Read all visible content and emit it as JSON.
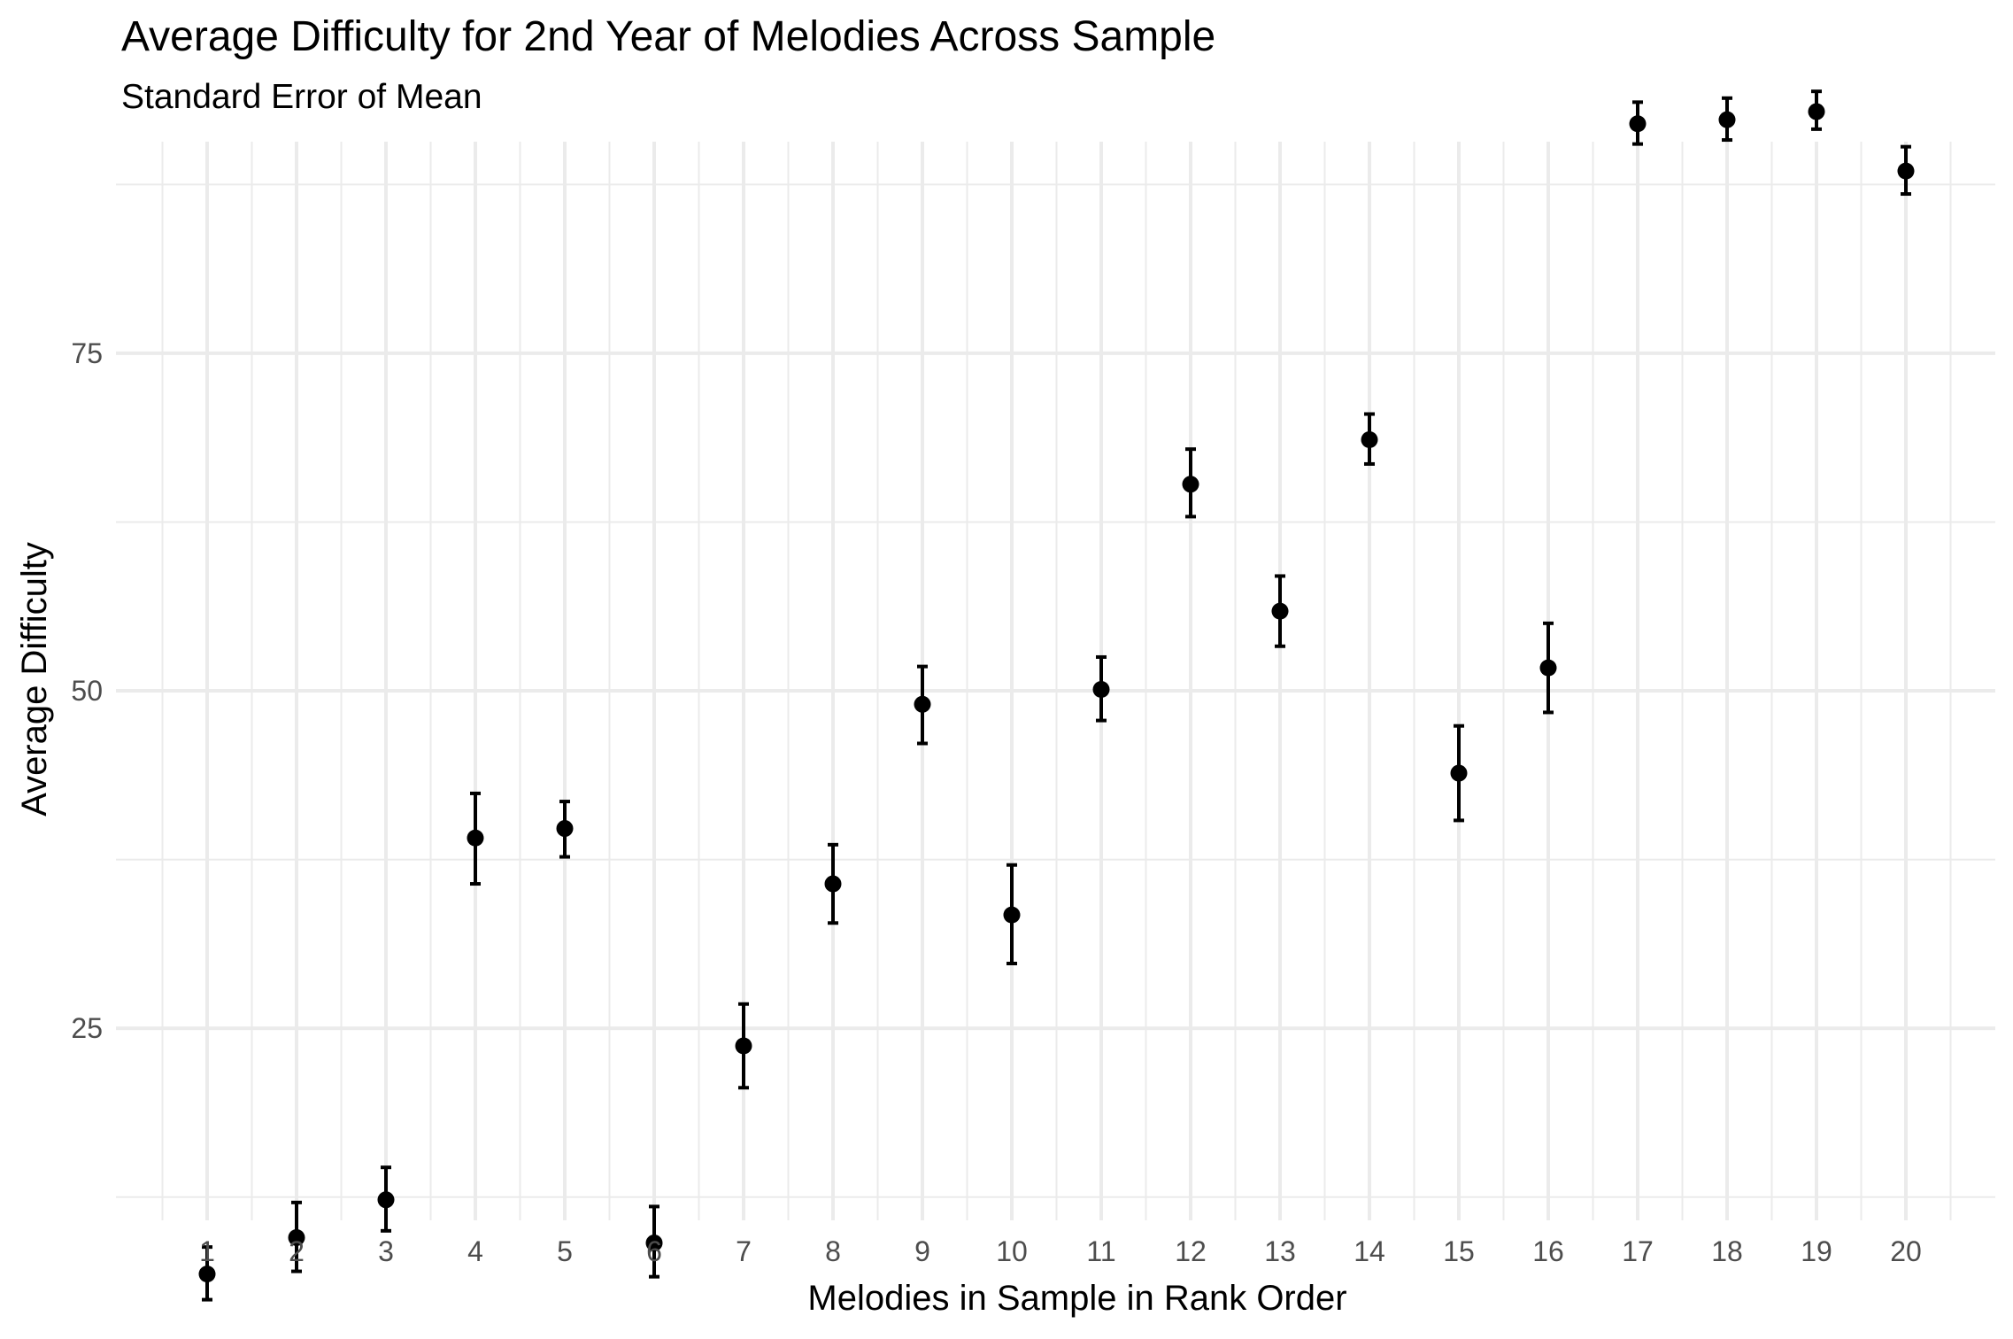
{
  "chart_data": {
    "type": "scatter",
    "title": "Average Difficulty for 2nd Year of Melodies Across Sample",
    "subtitle": "Standard Error of Mean",
    "xlabel": "Melodies in Sample in Rank Order",
    "ylabel": "Average Difficulty",
    "categories": [
      "1",
      "2",
      "3",
      "4",
      "5",
      "6",
      "7",
      "8",
      "9",
      "10",
      "11",
      "12",
      "13",
      "14",
      "15",
      "16",
      "17",
      "18",
      "19",
      "20"
    ],
    "y_ticks": [
      25,
      50,
      75
    ],
    "ylim": [
      3,
      98
    ],
    "grid": true,
    "error_bars": "standard error of mean",
    "series": [
      {
        "values": [
          6.8,
          9.5,
          12.3,
          39.1,
          39.8,
          9.1,
          23.7,
          35.7,
          49.0,
          33.4,
          50.1,
          65.3,
          55.9,
          68.6,
          43.9,
          51.7,
          92.0,
          92.3,
          92.9,
          88.5
        ],
        "error_low": [
          4.9,
          7.0,
          10.0,
          35.7,
          37.7,
          6.6,
          20.6,
          32.8,
          46.1,
          29.8,
          47.8,
          62.9,
          53.3,
          66.8,
          40.4,
          48.4,
          90.5,
          90.8,
          91.6,
          86.8
        ],
        "error_high": [
          8.8,
          12.1,
          14.7,
          42.4,
          41.8,
          11.8,
          26.8,
          38.6,
          51.8,
          37.1,
          52.5,
          67.9,
          58.5,
          70.5,
          47.4,
          55.0,
          93.6,
          93.9,
          94.4,
          90.3
        ]
      }
    ],
    "colors": {
      "points": "#000000",
      "grid": "#ebebeb",
      "background": "#ffffff"
    }
  }
}
